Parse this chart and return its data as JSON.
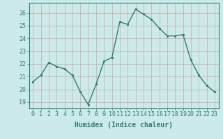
{
  "x": [
    0,
    1,
    2,
    3,
    4,
    5,
    6,
    7,
    8,
    9,
    10,
    11,
    12,
    13,
    14,
    15,
    16,
    17,
    18,
    19,
    20,
    21,
    22,
    23
  ],
  "y": [
    20.6,
    21.1,
    22.1,
    21.8,
    21.6,
    21.1,
    19.8,
    18.8,
    20.4,
    22.2,
    22.5,
    25.3,
    25.1,
    26.3,
    25.9,
    25.5,
    24.8,
    24.2,
    24.2,
    24.3,
    22.3,
    21.1,
    20.3,
    19.8
  ],
  "line_color": "#2e7d6e",
  "marker": "o",
  "markersize": 1.8,
  "linewidth": 1.0,
  "bg_color": "#cceaea",
  "grid_color": "#c8a8a8",
  "axis_color": "#2e7d6e",
  "xlabel": "Humidex (Indice chaleur)",
  "xlabel_fontsize": 7,
  "tick_fontsize": 6,
  "ylim": [
    18.5,
    26.8
  ],
  "yticks": [
    19,
    20,
    21,
    22,
    23,
    24,
    25,
    26
  ],
  "xlim": [
    -0.5,
    23.5
  ]
}
